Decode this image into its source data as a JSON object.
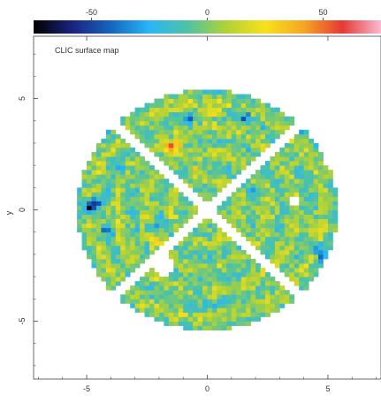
{
  "chart_data": {
    "type": "heatmap",
    "title": "CLIC surface map",
    "xlabel": "",
    "ylabel": "y",
    "xlim": [
      -7.2,
      7.2
    ],
    "ylim": [
      -7.6,
      7.8
    ],
    "x_ticks": [
      -5,
      0,
      5
    ],
    "y_ticks": [
      -5,
      0,
      5
    ],
    "x_tick_labels": [
      "-5",
      "0",
      "5"
    ],
    "y_tick_labels": [
      "-5",
      "0",
      "5"
    ],
    "colorbar": {
      "range": [
        -75,
        75
      ],
      "ticks": [
        -50,
        0,
        50
      ],
      "tick_labels": [
        "-50",
        "0",
        "50"
      ],
      "stops": [
        "#000000",
        "#1a237e",
        "#1565c0",
        "#29b6f6",
        "#4fc3a1",
        "#b2d235",
        "#f7e11b",
        "#f5a623",
        "#e53935",
        "#f8bbd0"
      ]
    },
    "dish": {
      "center": [
        0,
        0
      ],
      "radius": 5.4,
      "central_hole_radius": 0.4,
      "strut_half_width": 0.18,
      "strut_angles_deg": [
        45,
        135,
        225,
        315
      ],
      "background_value": 0,
      "features": [
        {
          "x": -4.9,
          "y": 0.1,
          "value": -60
        },
        {
          "x": -4.6,
          "y": 0.3,
          "value": -45
        },
        {
          "x": -4.1,
          "y": -0.9,
          "value": -35
        },
        {
          "x": -3.7,
          "y": 1.9,
          "value": -30
        },
        {
          "x": -2.3,
          "y": -0.8,
          "value": -30
        },
        {
          "x": -0.7,
          "y": 4.0,
          "value": -30
        },
        {
          "x": -0.3,
          "y": -3.8,
          "value": -25
        },
        {
          "x": 1.6,
          "y": 4.2,
          "value": -40
        },
        {
          "x": 3.8,
          "y": 3.7,
          "value": -40
        },
        {
          "x": 4.6,
          "y": -1.7,
          "value": -45
        },
        {
          "x": 4.8,
          "y": -2.2,
          "value": -30
        },
        {
          "x": 2.0,
          "y": 0.9,
          "value": -25
        },
        {
          "x": -1.6,
          "y": 2.8,
          "value": 60
        },
        {
          "x": -1.2,
          "y": 2.9,
          "value": 45
        },
        {
          "x": -0.4,
          "y": 1.8,
          "value": 30
        },
        {
          "x": 0.2,
          "y": 4.4,
          "value": 35
        },
        {
          "x": -2.1,
          "y": -1.4,
          "value": 25
        },
        {
          "x": 4.3,
          "y": -0.9,
          "value": 25
        },
        {
          "x": 1.6,
          "y": -3.1,
          "value": 20
        },
        {
          "x": -4.0,
          "y": -2.8,
          "value": 20
        }
      ],
      "missing_patches": [
        {
          "x": -1.8,
          "y": -2.5,
          "r": 0.45
        },
        {
          "x": 3.6,
          "y": 0.4,
          "r": 0.25
        },
        {
          "x": 5.2,
          "y": 2.4,
          "r": 0.5
        }
      ]
    }
  }
}
